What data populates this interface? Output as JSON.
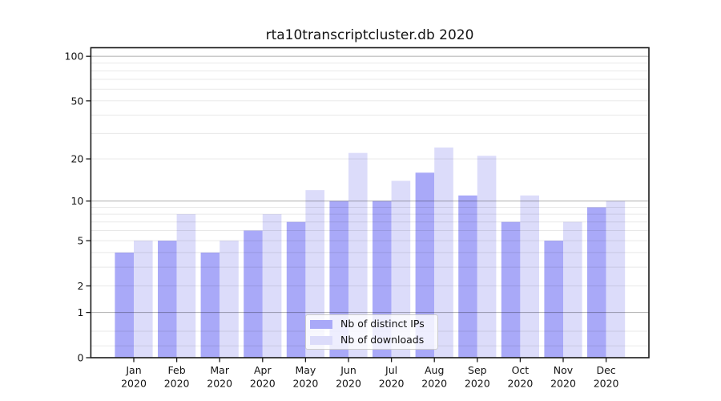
{
  "chart_data": {
    "type": "bar",
    "title": "rta10transcriptcluster.db 2020",
    "categories": [
      "Jan 2020",
      "Feb 2020",
      "Mar 2020",
      "Apr 2020",
      "May 2020",
      "Jun 2020",
      "Jul 2020",
      "Aug 2020",
      "Sep 2020",
      "Oct 2020",
      "Nov 2020",
      "Dec 2020"
    ],
    "series": [
      {
        "name": "Nb of distinct IPs",
        "color": "#a9a9f8",
        "values": [
          4,
          5,
          4,
          6,
          7,
          10,
          10,
          16,
          11,
          7,
          5,
          9
        ]
      },
      {
        "name": "Nb of downloads",
        "color": "#dcdcfa",
        "values": [
          5,
          8,
          5,
          8,
          12,
          22,
          14,
          24,
          21,
          11,
          7,
          10
        ]
      }
    ],
    "xlabel": "",
    "ylabel": "",
    "y_scale": "log10(value+1)",
    "ylim": [
      0,
      114
    ],
    "y_ticks": [
      0,
      1,
      2,
      5,
      10,
      20,
      50,
      100
    ],
    "y_minor_gridlines": [
      0.2,
      0.5,
      2,
      3,
      4,
      5,
      6,
      7,
      8,
      9,
      20,
      30,
      40,
      50,
      60,
      70,
      80,
      90
    ],
    "y_major_gridlines": [
      1,
      10,
      100
    ],
    "grid": true,
    "legend_position": "bottom-center",
    "colors": {
      "text": "#141414",
      "spine": "#1a1a1a",
      "minor_grid": "rgba(0,0,0,0.09)",
      "major_grid": "rgba(0,0,0,0.28)"
    }
  }
}
